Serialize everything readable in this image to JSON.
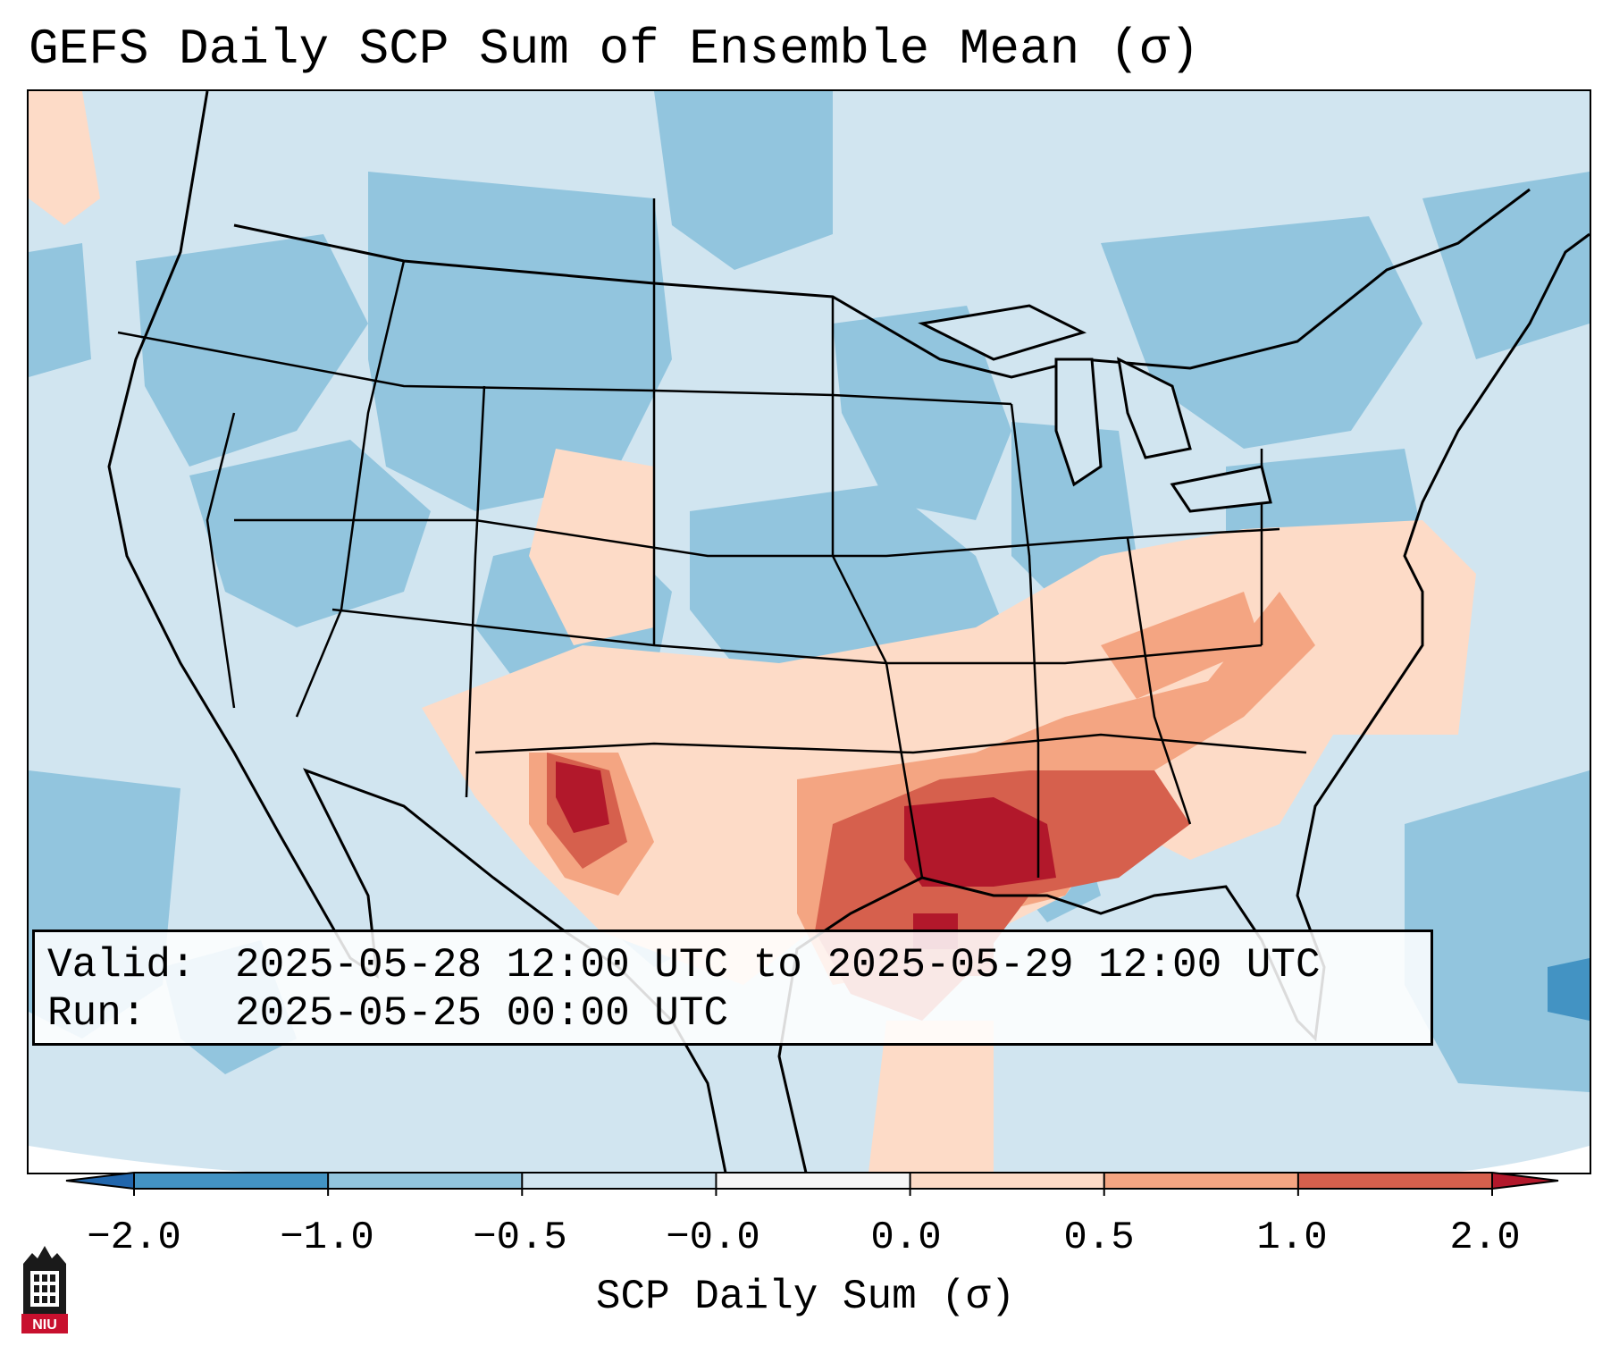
{
  "title": "GEFS Daily SCP Sum of Ensemble Mean (σ)",
  "info": {
    "valid_label": "Valid:",
    "valid_value": "2025-05-28 12:00 UTC to 2025-05-29 12:00 UTC",
    "run_label": "Run:",
    "run_value": "2025-05-25 00:00 UTC"
  },
  "colorbar": {
    "label": "SCP Daily Sum (σ)",
    "ticks": [
      "−2.0",
      "−1.0",
      "−0.5",
      "−0.0",
      "0.0",
      "0.5",
      "1.0",
      "2.0"
    ],
    "colors": [
      "#4393c3",
      "#92c5de",
      "#d1e5f0",
      "#f7f7f7",
      "#fddbc7",
      "#f4a582",
      "#d6604d"
    ],
    "extend_low_color": "#2166ac",
    "extend_high_color": "#b2182b"
  },
  "logo": {
    "text": "NIU",
    "color": "#c8102e"
  }
}
